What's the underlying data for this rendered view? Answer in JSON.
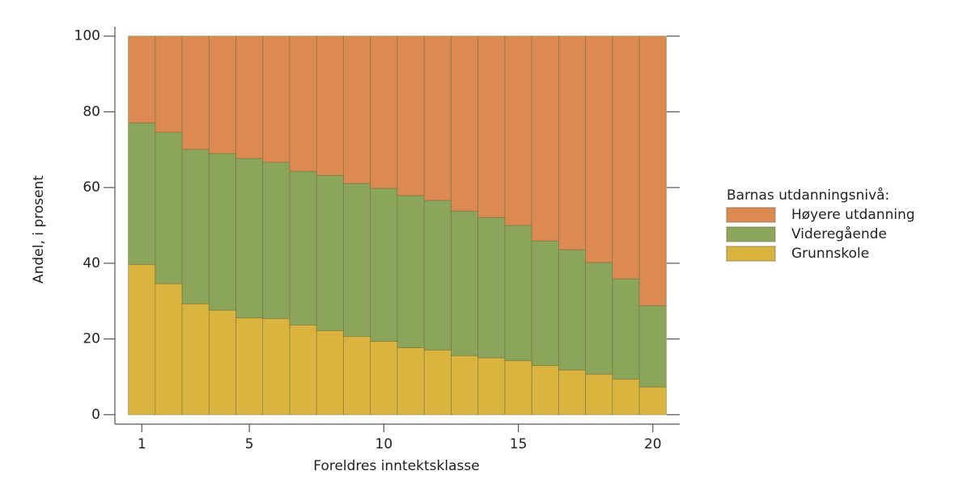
{
  "chart_data": {
    "type": "stacked_bar",
    "x_label": "Foreldres inntektsklasse",
    "y_label": "Andel, i prosent",
    "legend_title": "Barnas utdanningsnivå:",
    "legend": "right",
    "x": [
      1,
      2,
      3,
      4,
      5,
      6,
      7,
      8,
      9,
      10,
      11,
      12,
      13,
      14,
      15,
      16,
      17,
      18,
      19,
      20
    ],
    "xlim": [
      0,
      21
    ],
    "xticks": [
      1,
      5,
      10,
      15,
      20
    ],
    "ylim": [
      -2.5,
      102.5
    ],
    "yticks": [
      0,
      20,
      40,
      60,
      80,
      100
    ],
    "series": [
      {
        "name": "Grunnskole",
        "color": "#dbb43f",
        "values": [
          39.7,
          34.6,
          29.3,
          27.6,
          25.6,
          25.4,
          23.7,
          22.2,
          20.7,
          19.4,
          17.7,
          17.1,
          15.6,
          15.0,
          14.3,
          13.0,
          11.8,
          10.7,
          9.4,
          7.3
        ]
      },
      {
        "name": "Videregående",
        "color": "#8ba55a",
        "values": [
          37.4,
          40.0,
          40.8,
          41.4,
          42.1,
          41.3,
          40.6,
          41.0,
          40.4,
          40.4,
          40.2,
          39.5,
          38.2,
          37.1,
          35.7,
          32.9,
          31.8,
          29.5,
          26.5,
          21.5
        ]
      },
      {
        "name": "Høyere utdanning",
        "color": "#dc8a52",
        "values": [
          22.9,
          25.4,
          29.9,
          31.0,
          32.3,
          33.3,
          35.7,
          36.8,
          38.9,
          40.2,
          42.1,
          43.4,
          46.2,
          47.9,
          50.0,
          54.1,
          56.4,
          59.8,
          64.1,
          71.2
        ]
      }
    ]
  }
}
